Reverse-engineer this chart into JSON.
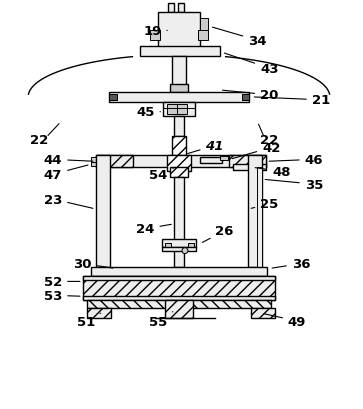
{
  "background": "#ffffff",
  "line_color": "#000000",
  "gray_light": "#dddddd",
  "gray_mid": "#bbbbbb",
  "gray_dark": "#888888",
  "hatch_color": "#555555"
}
